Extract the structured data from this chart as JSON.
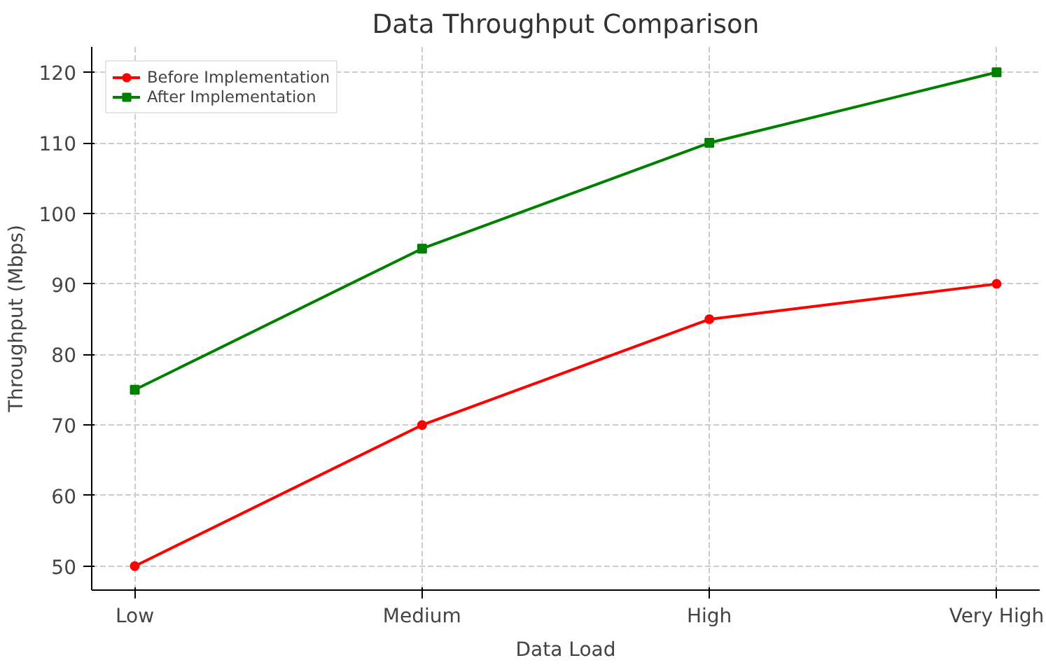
{
  "chart_data": {
    "type": "line",
    "title": "Data Throughput Comparison",
    "xlabel": "Data Load",
    "ylabel": "Throughput (Mbps)",
    "categories": [
      "Low",
      "Medium",
      "High",
      "Very High"
    ],
    "series": [
      {
        "name": "Before Implementation",
        "color": "#ff0000",
        "marker": "circle",
        "values": [
          50,
          70,
          85,
          90
        ]
      },
      {
        "name": "After Implementation",
        "color": "#008000",
        "marker": "square",
        "values": [
          75,
          95,
          110,
          120
        ]
      }
    ],
    "ylim": [
      46.6,
      123.6
    ],
    "yticks": [
      50,
      60,
      70,
      80,
      90,
      100,
      110,
      120
    ],
    "grid": true,
    "legend": "top left",
    "line_style": "solid"
  }
}
